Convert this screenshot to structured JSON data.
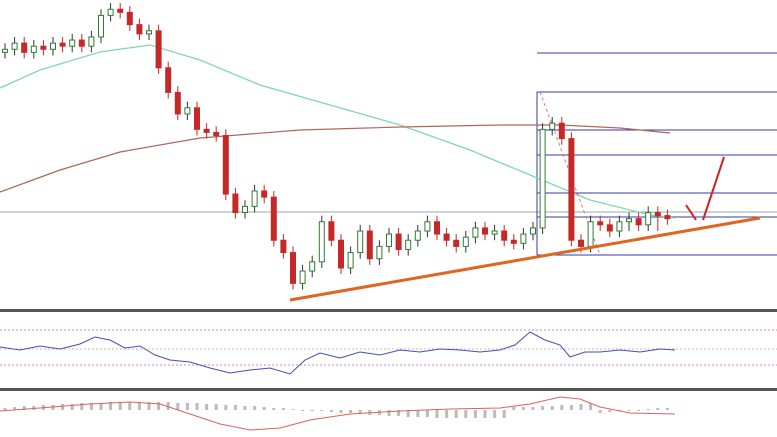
{
  "chart_data": {
    "type": "candlestick",
    "ylim": [
      0,
      100
    ],
    "up_color": "#2e7d32",
    "down_color": "#c62828",
    "open": [
      83,
      84,
      86,
      83,
      85,
      84,
      86,
      85,
      87,
      85,
      88,
      95,
      97,
      96,
      92,
      89,
      90,
      78,
      70,
      63,
      65,
      58,
      57,
      56,
      37,
      31,
      33,
      38,
      36,
      22,
      18,
      8,
      12,
      15,
      28,
      22,
      13,
      18,
      25,
      16,
      20,
      24,
      19,
      22,
      25,
      28,
      24,
      22,
      20,
      23,
      26,
      24,
      25,
      22,
      21,
      24,
      26,
      58,
      60,
      55,
      22,
      20,
      28,
      27,
      25,
      28,
      29,
      27,
      31,
      30
    ],
    "high": [
      86,
      88,
      88,
      87,
      87,
      88,
      88,
      89,
      89,
      90,
      97,
      99,
      99,
      98,
      94,
      92,
      92,
      80,
      72,
      67,
      67,
      60,
      59,
      58,
      39,
      35,
      40,
      40,
      38,
      24,
      20,
      14,
      17,
      30,
      30,
      24,
      20,
      27,
      27,
      22,
      26,
      26,
      24,
      27,
      30,
      30,
      26,
      24,
      25,
      28,
      28,
      27,
      27,
      24,
      26,
      28,
      60,
      62,
      62,
      57,
      24,
      30,
      30,
      29,
      30,
      31,
      31,
      33,
      33,
      32
    ],
    "low": [
      81,
      82,
      81,
      81,
      82,
      82,
      83,
      83,
      83,
      83,
      86,
      93,
      94,
      90,
      87,
      87,
      76,
      68,
      61,
      61,
      56,
      55,
      54,
      35,
      29,
      29,
      31,
      34,
      20,
      16,
      6,
      6,
      10,
      13,
      20,
      11,
      11,
      16,
      14,
      14,
      18,
      17,
      17,
      20,
      23,
      22,
      20,
      18,
      18,
      21,
      22,
      22,
      20,
      19,
      19,
      22,
      24,
      56,
      53,
      20,
      18,
      18,
      25,
      23,
      23,
      25,
      25,
      25,
      25,
      27
    ],
    "close": [
      84,
      86,
      83,
      85,
      84,
      86,
      85,
      87,
      85,
      88,
      95,
      97,
      96,
      92,
      89,
      90,
      78,
      70,
      63,
      65,
      58,
      57,
      56,
      37,
      31,
      33,
      38,
      36,
      22,
      18,
      8,
      12,
      15,
      28,
      22,
      13,
      18,
      25,
      16,
      20,
      24,
      19,
      22,
      25,
      28,
      24,
      22,
      20,
      23,
      26,
      24,
      25,
      22,
      21,
      24,
      26,
      58,
      60,
      55,
      22,
      20,
      28,
      27,
      25,
      28,
      29,
      27,
      31,
      30,
      29
    ]
  }
}
